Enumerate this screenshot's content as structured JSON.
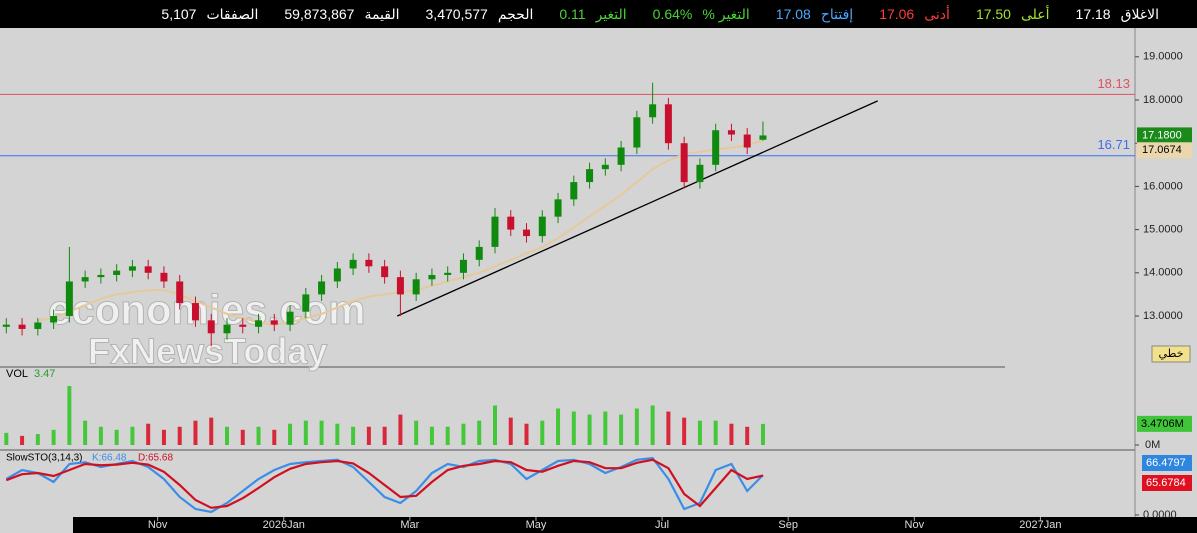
{
  "header": [
    {
      "label": "الاغلاق",
      "value": "17.18",
      "color": "#ffffff"
    },
    {
      "label": "أعلى",
      "value": "17.50",
      "color": "#a6e22e"
    },
    {
      "label": "أدنى",
      "value": "17.06",
      "color": "#ff3b3b"
    },
    {
      "label": "إفتتاح",
      "value": "17.08",
      "color": "#4da6ff"
    },
    {
      "label": "التغير %",
      "value": "0.64%",
      "color": "#4cd137"
    },
    {
      "label": "التغير",
      "value": "0.11",
      "color": "#4cd137"
    },
    {
      "label": "الحجم",
      "value": "3,470,577",
      "color": "#ffffff"
    },
    {
      "label": "القيمة",
      "value": "59,873,867",
      "color": "#ffffff"
    },
    {
      "label": "الصفقات",
      "value": "5,107",
      "color": "#ffffff"
    }
  ],
  "chart_data": [
    {
      "type": "candlestick",
      "x": [
        8.6,
        8.85,
        9.1,
        9.35,
        9.6,
        9.85,
        10.1,
        10.35,
        10.6,
        10.85,
        11.1,
        11.35,
        11.6,
        11.85,
        12.1,
        12.35,
        12.6,
        12.85,
        13.1,
        13.35,
        13.6,
        13.85,
        14.1,
        14.35,
        14.6,
        14.85,
        15.1,
        15.35,
        15.6,
        15.85,
        16.1,
        16.35,
        16.6,
        16.85,
        17.1,
        17.35,
        17.6,
        17.85,
        18.1,
        18.35,
        18.6,
        18.85,
        19.1,
        19.35,
        19.6,
        19.85,
        20.1,
        20.35,
        20.6
      ],
      "open": [
        12.75,
        12.8,
        12.7,
        12.85,
        13.0,
        13.8,
        13.9,
        13.95,
        14.05,
        14.15,
        14.0,
        13.8,
        13.3,
        12.9,
        12.6,
        12.8,
        12.75,
        12.9,
        12.8,
        13.1,
        13.5,
        13.8,
        14.1,
        14.3,
        14.15,
        13.9,
        13.5,
        13.85,
        13.95,
        14.0,
        14.3,
        14.6,
        15.3,
        15.0,
        14.85,
        15.3,
        15.7,
        16.1,
        16.4,
        16.5,
        16.9,
        17.6,
        17.9,
        17.0,
        16.1,
        16.5,
        17.3,
        17.2,
        17.08
      ],
      "high": [
        12.95,
        12.95,
        12.95,
        13.15,
        14.6,
        14.05,
        14.1,
        14.2,
        14.3,
        14.3,
        14.15,
        13.95,
        13.45,
        13.05,
        12.95,
        12.95,
        13.05,
        13.05,
        13.25,
        13.65,
        13.95,
        14.25,
        14.45,
        14.45,
        14.3,
        14.05,
        14.0,
        14.1,
        14.15,
        14.45,
        14.75,
        15.5,
        15.45,
        15.15,
        15.45,
        15.85,
        16.25,
        16.55,
        16.65,
        17.05,
        17.75,
        18.4,
        18.05,
        17.15,
        16.65,
        17.45,
        17.45,
        17.35,
        17.5
      ],
      "low": [
        12.6,
        12.55,
        12.55,
        12.7,
        12.85,
        13.65,
        13.75,
        13.8,
        13.9,
        13.85,
        13.65,
        13.15,
        12.75,
        12.3,
        12.45,
        12.6,
        12.6,
        12.65,
        12.65,
        12.95,
        13.35,
        13.65,
        13.95,
        14.0,
        13.75,
        13.0,
        13.35,
        13.7,
        13.8,
        13.85,
        14.15,
        14.45,
        14.85,
        14.7,
        14.7,
        15.15,
        15.55,
        15.95,
        16.25,
        16.35,
        16.75,
        17.45,
        16.85,
        15.95,
        15.95,
        16.35,
        17.05,
        16.75,
        17.06
      ],
      "close": [
        12.8,
        12.7,
        12.85,
        13.0,
        13.8,
        13.9,
        13.95,
        14.05,
        14.15,
        14.0,
        13.8,
        13.3,
        12.9,
        12.6,
        12.8,
        12.75,
        12.9,
        12.8,
        13.1,
        13.5,
        13.8,
        14.1,
        14.3,
        14.15,
        13.9,
        13.5,
        13.85,
        13.95,
        14.0,
        14.3,
        14.6,
        15.3,
        15.0,
        14.85,
        15.3,
        15.7,
        16.1,
        16.4,
        16.5,
        16.9,
        17.6,
        17.9,
        17.0,
        16.1,
        16.5,
        17.3,
        17.2,
        16.9,
        17.18
      ],
      "up_color": "#0f8a0f",
      "down_color": "#c8102e",
      "ma": {
        "color": "#e6c99a",
        "values": [
          null,
          null,
          12.9,
          12.95,
          13.1,
          13.25,
          13.4,
          13.5,
          13.55,
          13.6,
          13.6,
          13.5,
          13.35,
          13.2,
          13.05,
          12.95,
          12.85,
          12.8,
          12.85,
          12.95,
          13.05,
          13.2,
          13.35,
          13.45,
          13.5,
          13.55,
          13.6,
          13.7,
          13.8,
          13.9,
          14.0,
          14.15,
          14.3,
          14.45,
          14.6,
          14.8,
          15.05,
          15.3,
          15.55,
          15.8,
          16.1,
          16.4,
          16.6,
          16.75,
          16.8,
          16.85,
          16.9,
          16.95,
          17.0674
        ]
      },
      "hlines": [
        {
          "value": 18.13,
          "color": "#e05060"
        },
        {
          "value": 16.71,
          "color": "#3d6ef0"
        }
      ],
      "trendline": {
        "x": [
          14.8,
          22.42
        ],
        "y": [
          13.0,
          17.98
        ],
        "color": "#000000"
      },
      "close_label": "17.1800",
      "button": "خطي",
      "watermark": [
        "economies.com",
        "FxNewsToday"
      ],
      "xlim": [
        8.5,
        26.5
      ],
      "xticks": [
        {
          "value": 11,
          "label": "Nov"
        },
        {
          "value": 13,
          "label": "2026Jan"
        },
        {
          "value": 15,
          "label": "Mar"
        },
        {
          "value": 17,
          "label": "May"
        },
        {
          "value": 19,
          "label": "Jul"
        },
        {
          "value": 21,
          "label": "Sep"
        },
        {
          "value": 23,
          "label": "Nov"
        },
        {
          "value": 25,
          "label": "2027Jan"
        }
      ],
      "ylim": [
        11.82,
        19.62
      ],
      "yticks": [
        {
          "value": 13,
          "label": "13.0000"
        },
        {
          "value": 14,
          "label": "14.0000"
        },
        {
          "value": 15,
          "label": "15.0000"
        },
        {
          "value": 16,
          "label": "16.0000"
        },
        {
          "value": 17,
          "label": "17.0000"
        },
        {
          "value": 18,
          "label": "18.0000"
        },
        {
          "value": 19,
          "label": "19.0000"
        }
      ]
    },
    {
      "type": "bar",
      "title": "VOL",
      "value_label": "3.47",
      "last_label": "3.4706M",
      "values": [
        2,
        1.5,
        1.8,
        2.5,
        9.7,
        4,
        3,
        2.5,
        3,
        3.5,
        2.5,
        3,
        4,
        4.5,
        3,
        2.5,
        3,
        2.5,
        3.5,
        4,
        4,
        3.5,
        3,
        3,
        3,
        5,
        4,
        3,
        3,
        3.5,
        4,
        6.5,
        4.5,
        3.5,
        4,
        6,
        5.5,
        5,
        5.5,
        5,
        6,
        6.5,
        5.5,
        4.5,
        4,
        4,
        3.5,
        3,
        3.4706
      ],
      "ylim": [
        0,
        12
      ],
      "yticks": [
        {
          "value": 0,
          "label": "0M"
        }
      ]
    },
    {
      "type": "line",
      "title": "SlowSTO(3,14,3)",
      "series": [
        {
          "label": "K:66.48",
          "color": "#3a8ee6",
          "values": [
            60,
            75,
            70,
            55,
            85,
            88,
            80,
            85,
            90,
            80,
            60,
            30,
            10,
            5,
            20,
            40,
            60,
            75,
            85,
            88,
            90,
            92,
            80,
            55,
            30,
            20,
            40,
            70,
            85,
            80,
            90,
            92,
            85,
            60,
            75,
            90,
            92,
            85,
            70,
            80,
            92,
            95,
            60,
            10,
            20,
            75,
            85,
            40,
            66.4797
          ]
        },
        {
          "label": "D:65.68",
          "color": "#d01020",
          "values": [
            58,
            68,
            70,
            65,
            75,
            85,
            83,
            84,
            87,
            84,
            72,
            50,
            25,
            12,
            15,
            28,
            45,
            63,
            77,
            85,
            88,
            90,
            86,
            70,
            50,
            30,
            32,
            55,
            75,
            82,
            85,
            90,
            88,
            75,
            72,
            82,
            90,
            88,
            78,
            78,
            87,
            92,
            78,
            35,
            15,
            45,
            75,
            60,
            65.6784
          ]
        }
      ],
      "ylim": [
        0,
        100
      ],
      "yticks": [
        {
          "value": 0,
          "label": "0.0000"
        }
      ]
    }
  ]
}
